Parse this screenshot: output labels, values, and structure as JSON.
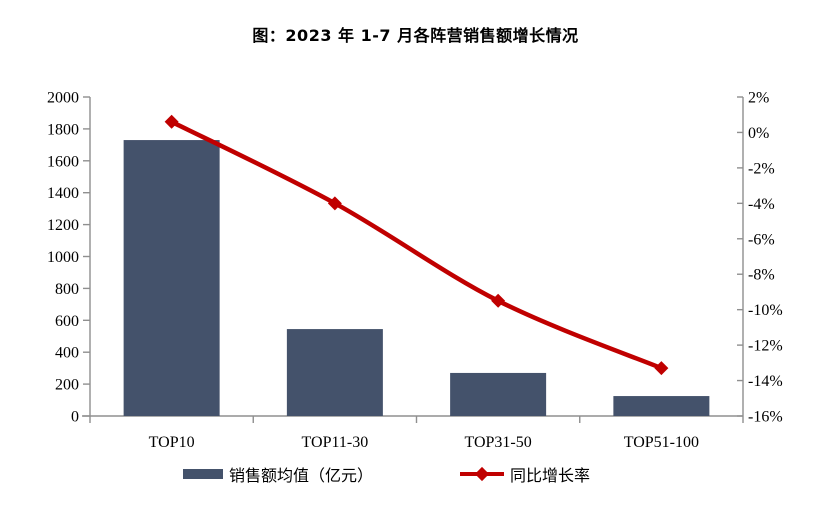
{
  "title": "图：2023 年 1-7 月各阵营销售额增长情况",
  "chart_data": {
    "type": "bar",
    "subtype": "bar-line-combo",
    "title": "图：2023 年 1-7 月各阵营销售额增长情况",
    "categories": [
      "TOP10",
      "TOP11-30",
      "TOP31-50",
      "TOP51-100"
    ],
    "series": [
      {
        "name": "销售额均值（亿元）",
        "type": "bar",
        "axis": "left",
        "values": [
          1730,
          545,
          270,
          125
        ]
      },
      {
        "name": "同比增长率",
        "type": "line",
        "axis": "right",
        "unit": "%",
        "values": [
          0.6,
          -4.0,
          -9.5,
          -13.3
        ]
      }
    ],
    "left_axis": {
      "min": 0,
      "max": 2000,
      "step": 200,
      "tick_labels": [
        "0",
        "200",
        "400",
        "600",
        "800",
        "1000",
        "1200",
        "1400",
        "1600",
        "1800",
        "2000"
      ]
    },
    "right_axis": {
      "min": -16,
      "max": 2,
      "step": 2,
      "tick_labels": [
        "-16%",
        "-14%",
        "-12%",
        "-10%",
        "-8%",
        "-6%",
        "-4%",
        "-2%",
        "0%",
        "2%"
      ]
    },
    "grid": false,
    "legend_position": "bottom"
  },
  "legend": {
    "bar_label": "销售额均值（亿元）",
    "line_label": "同比增长率"
  },
  "colors": {
    "bar": "#44526B",
    "line": "#C00000",
    "axis": "#8F8F8F",
    "text": "#000000",
    "background": "#FFFFFF"
  }
}
